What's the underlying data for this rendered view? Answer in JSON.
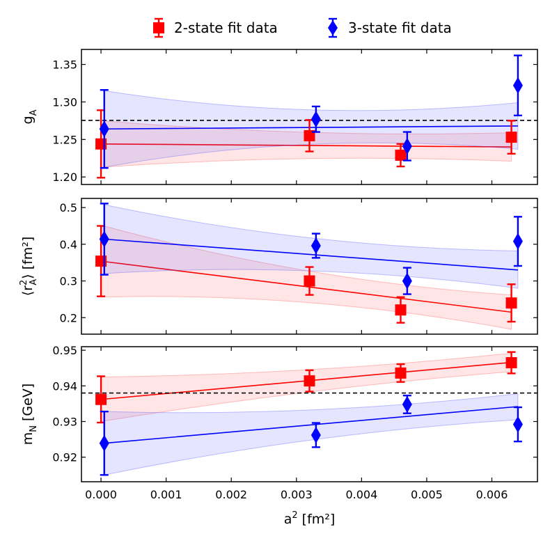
{
  "legend": {
    "entries": [
      {
        "label": "2-state fit data",
        "color": "#ff0000",
        "marker": "square"
      },
      {
        "label": "3-state fit data",
        "color": "#0000ff",
        "marker": "diamond"
      }
    ]
  },
  "chart_data": [
    {
      "type": "scatter",
      "ylabel_main": "g",
      "ylabel_sub": "A",
      "xlim": [
        -0.0003,
        0.0067
      ],
      "ylim": [
        1.19,
        1.37
      ],
      "yticks": [
        "1.20",
        "1.25",
        "1.30",
        "1.35"
      ],
      "reference_line": 1.2754,
      "series": [
        {
          "name": "2-state fit data",
          "color": "#ff0000",
          "marker": "square",
          "x": [
            0.0,
            0.0032,
            0.0046,
            0.0063
          ],
          "y": [
            1.244,
            1.255,
            1.229,
            1.253
          ],
          "yerr": [
            0.045,
            0.021,
            0.015,
            0.022
          ],
          "fit": {
            "x": [
              0.0,
              0.0063
            ],
            "y": [
              1.244,
              1.24
            ],
            "band_lo": [
              1.213,
              1.221
            ],
            "band_hi": [
              1.275,
              1.259
            ],
            "band_mid": [
              0.0032,
              1.232,
              1.252
            ]
          }
        },
        {
          "name": "3-state fit data",
          "color": "#0000ff",
          "marker": "diamond",
          "x": [
            5e-05,
            0.0033,
            0.0047,
            0.0064
          ],
          "y": [
            1.264,
            1.277,
            1.241,
            1.322
          ],
          "yerr": [
            0.052,
            0.017,
            0.019,
            0.04
          ],
          "fit": {
            "x": [
              5e-05,
              0.0064
            ],
            "y": [
              1.264,
              1.268
            ],
            "band_lo": [
              1.213,
              1.237
            ],
            "band_hi": [
              1.315,
              1.299
            ],
            "band_mid": [
              0.0032,
              1.262,
              1.272
            ]
          }
        }
      ]
    },
    {
      "type": "scatter",
      "ylabel_main": "⟨r",
      "ylabel_sub": "A",
      "ylabel_sup": "2",
      "ylabel_tail": "⟩ [fm²]",
      "xlim": [
        -0.0003,
        0.0067
      ],
      "ylim": [
        0.155,
        0.525
      ],
      "yticks": [
        "0.2",
        "0.3",
        "0.4",
        "0.5"
      ],
      "series": [
        {
          "name": "2-state fit data",
          "color": "#ff0000",
          "marker": "square",
          "x": [
            0.0,
            0.0032,
            0.0046,
            0.0063
          ],
          "y": [
            0.354,
            0.3,
            0.221,
            0.24
          ],
          "yerr": [
            0.096,
            0.038,
            0.035,
            0.051
          ],
          "fit": {
            "x": [
              0.0,
              0.0063
            ],
            "y": [
              0.354,
              0.215
            ],
            "band_lo": [
              0.256,
              0.168
            ],
            "band_hi": [
              0.452,
              0.262
            ],
            "band_mid": [
              0.0032,
              0.27,
              0.298
            ]
          }
        },
        {
          "name": "3-state fit data",
          "color": "#0000ff",
          "marker": "diamond",
          "x": [
            5e-05,
            0.0033,
            0.0047,
            0.0064
          ],
          "y": [
            0.414,
            0.396,
            0.3,
            0.408
          ],
          "yerr": [
            0.097,
            0.033,
            0.036,
            0.067
          ],
          "fit": {
            "x": [
              5e-05,
              0.0064
            ],
            "y": [
              0.414,
              0.33
            ],
            "band_lo": [
              0.32,
              0.28
            ],
            "band_hi": [
              0.508,
              0.382
            ],
            "band_mid": [
              0.0032,
              0.355,
              0.39
            ]
          }
        }
      ]
    },
    {
      "type": "scatter",
      "ylabel_main": "m",
      "ylabel_sub": "N",
      "ylabel_tail": " [GeV]",
      "xlabel_main": "a",
      "xlabel_sup": "2",
      "xlabel_tail": " [fm²]",
      "xlim": [
        -0.0003,
        0.0067
      ],
      "ylim": [
        0.9131,
        0.951
      ],
      "yticks": [
        "0.92",
        "0.93",
        "0.94",
        "0.95"
      ],
      "xticks": [
        "0.000",
        "0.001",
        "0.002",
        "0.003",
        "0.004",
        "0.005",
        "0.006"
      ],
      "reference_line": 0.938,
      "series": [
        {
          "name": "2-state fit data",
          "color": "#ff0000",
          "marker": "square",
          "x": [
            0.0,
            0.0032,
            0.0046,
            0.0063
          ],
          "y": [
            0.9362,
            0.9414,
            0.9436,
            0.9465
          ],
          "yerr": [
            0.0065,
            0.003,
            0.0025,
            0.003
          ],
          "fit": {
            "x": [
              0.0,
              0.0063
            ],
            "y": [
              0.9362,
              0.9466
            ],
            "band_lo": [
              0.93,
              0.944
            ],
            "band_hi": [
              0.9425,
              0.9492
            ],
            "band_mid": [
              0.0032,
              0.9395,
              0.9432
            ]
          }
        },
        {
          "name": "3-state fit data",
          "color": "#0000ff",
          "marker": "diamond",
          "x": [
            5e-05,
            0.0033,
            0.0047,
            0.0064
          ],
          "y": [
            0.9239,
            0.9262,
            0.9348,
            0.9292
          ],
          "yerr": [
            0.0089,
            0.0034,
            0.0025,
            0.0048
          ],
          "fit": {
            "x": [
              5e-05,
              0.0064
            ],
            "y": [
              0.9239,
              0.9342
            ],
            "band_lo": [
              0.915,
              0.9305
            ],
            "band_hi": [
              0.9328,
              0.9378
            ],
            "band_mid": [
              0.0032,
              0.9268,
              0.9312
            ]
          }
        }
      ]
    }
  ]
}
